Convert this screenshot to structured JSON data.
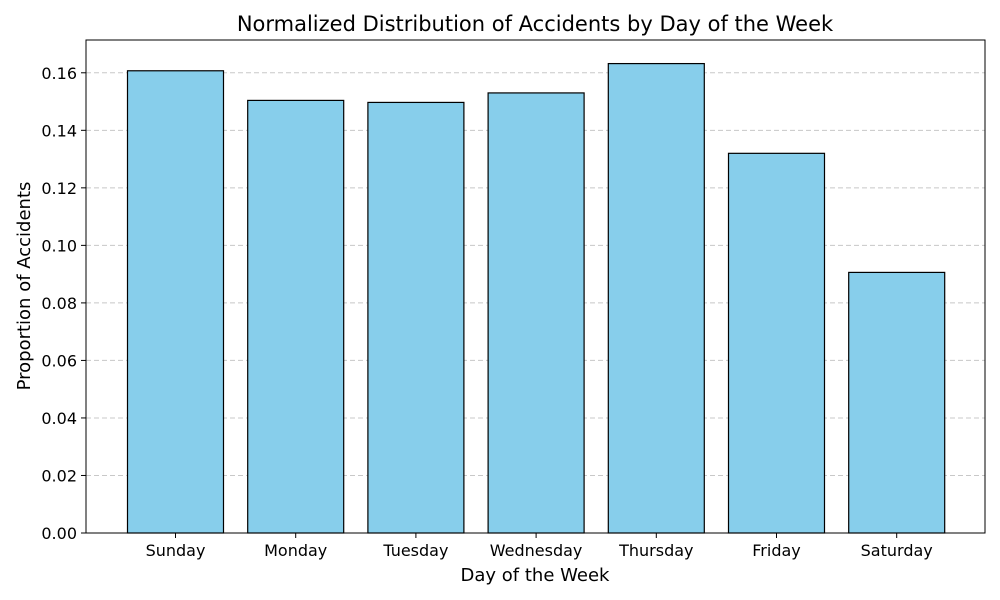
{
  "chart_data": {
    "type": "bar",
    "title": "Normalized Distribution of Accidents by Day of the Week",
    "xlabel": "Day of the Week",
    "ylabel": "Proportion of Accidents",
    "categories": [
      "Sunday",
      "Monday",
      "Tuesday",
      "Wednesday",
      "Thursday",
      "Friday",
      "Saturday"
    ],
    "values": [
      0.1607,
      0.1504,
      0.1497,
      0.153,
      0.1632,
      0.132,
      0.0906
    ],
    "ylim": [
      0,
      0.1714
    ],
    "yticks": [
      "0.00",
      "0.02",
      "0.04",
      "0.06",
      "0.08",
      "0.10",
      "0.12",
      "0.14",
      "0.16"
    ],
    "grid": "y-dashed",
    "legend": "none",
    "colors": {
      "bar_fill": "#87ceeb",
      "bar_edge": "#000000",
      "grid": "#c8c8c8"
    }
  }
}
